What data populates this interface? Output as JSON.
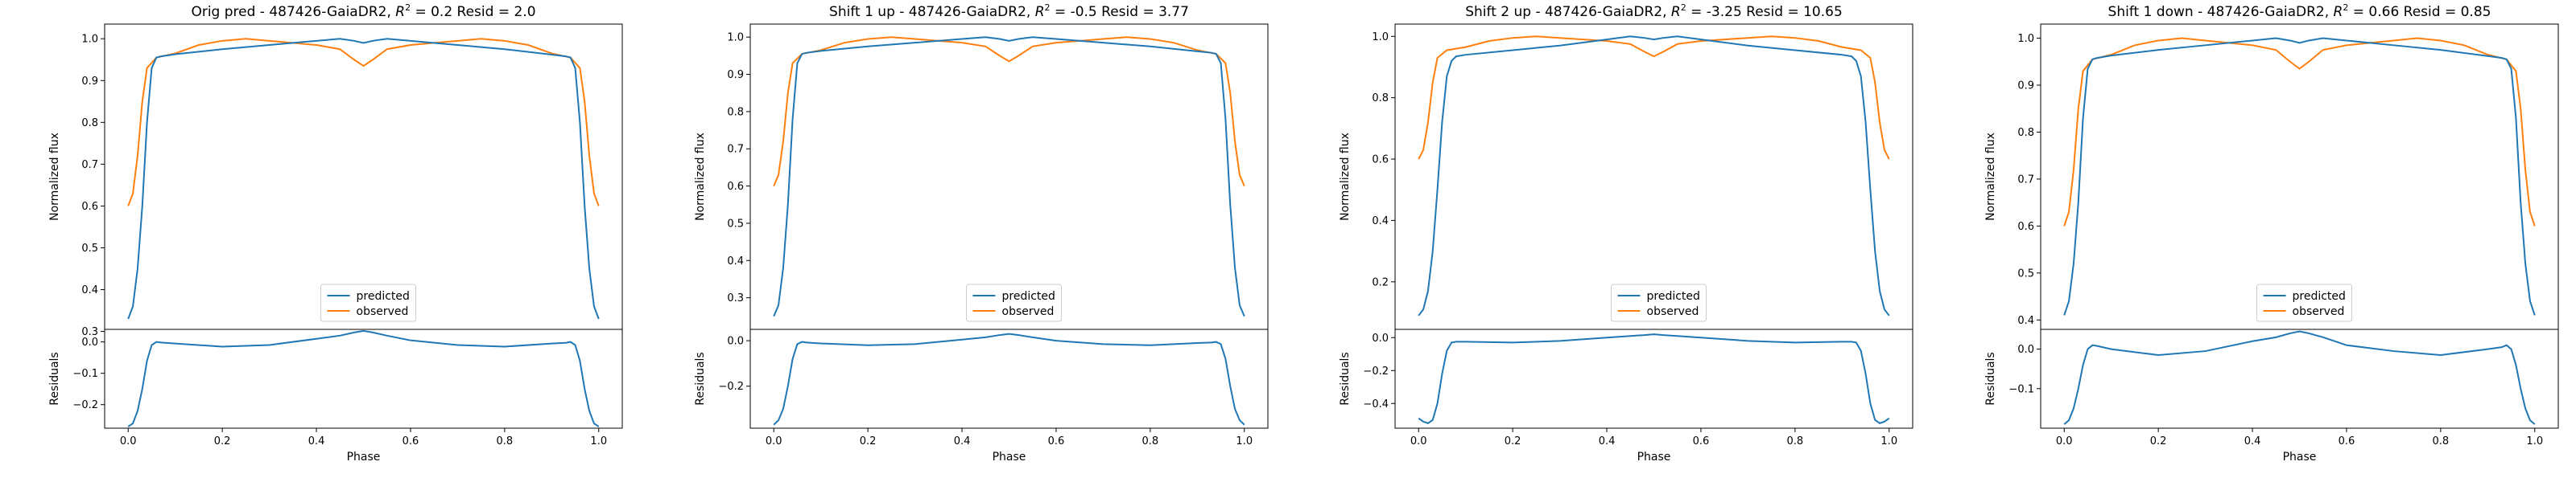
{
  "colors": {
    "predicted": "#1f77b4",
    "observed": "#ff7f0e"
  },
  "chart_data": [
    {
      "type": "line",
      "title_prefix": "Orig pred - 487426-GaiaDR2, ",
      "r2_label": "R",
      "r2_sup": "2",
      "title_mid": " = 0.2 Resid = 2.0",
      "xlabel": "Phase",
      "ylabel_top": "Normalized flux",
      "ylabel_bottom": "Residuals",
      "legend": [
        "predicted",
        "observed"
      ],
      "legend_position": "lower-center",
      "grid": false,
      "top_ylim": [
        0.305,
        1.035
      ],
      "top_yticks": [
        0.3,
        0.4,
        0.5,
        0.6,
        0.7,
        0.8,
        0.9,
        1.0
      ],
      "top_yticklabels": [
        "0.3",
        "0.4",
        "0.5",
        "0.6",
        "0.7",
        "0.8",
        "0.9",
        "1.0"
      ],
      "bottom_ylim": [
        -0.275,
        0.04
      ],
      "bottom_yticks": [
        -0.2,
        -0.1,
        0.0
      ],
      "bottom_yticklabels": [
        "−0.2",
        "−0.1",
        "0.0"
      ],
      "xlim": [
        -0.05,
        1.05
      ],
      "xticks": [
        0.0,
        0.2,
        0.4,
        0.6,
        0.8,
        1.0
      ],
      "xticklabels": [
        "0.0",
        "0.2",
        "0.4",
        "0.6",
        "0.8",
        "1.0"
      ],
      "series": [
        {
          "name": "predicted",
          "x": [
            0.0,
            0.01,
            0.02,
            0.03,
            0.04,
            0.05,
            0.06,
            0.07,
            0.1,
            0.2,
            0.3,
            0.4,
            0.45,
            0.48,
            0.5,
            0.52,
            0.55,
            0.6,
            0.7,
            0.8,
            0.9,
            0.93,
            0.94,
            0.95,
            0.96,
            0.97,
            0.98,
            0.99,
            1.0
          ],
          "y": [
            0.33,
            0.36,
            0.45,
            0.6,
            0.8,
            0.93,
            0.955,
            0.958,
            0.963,
            0.975,
            0.985,
            0.995,
            1.0,
            0.995,
            0.99,
            0.995,
            1.0,
            0.995,
            0.985,
            0.975,
            0.962,
            0.958,
            0.955,
            0.93,
            0.8,
            0.6,
            0.45,
            0.36,
            0.33
          ]
        },
        {
          "name": "observed",
          "x": [
            0.0,
            0.01,
            0.02,
            0.03,
            0.04,
            0.06,
            0.1,
            0.15,
            0.2,
            0.25,
            0.3,
            0.35,
            0.4,
            0.45,
            0.48,
            0.5,
            0.52,
            0.55,
            0.6,
            0.65,
            0.7,
            0.75,
            0.8,
            0.85,
            0.9,
            0.94,
            0.96,
            0.97,
            0.98,
            0.99,
            1.0
          ],
          "y": [
            0.6,
            0.63,
            0.72,
            0.85,
            0.93,
            0.955,
            0.965,
            0.985,
            0.995,
            1.0,
            0.995,
            0.99,
            0.985,
            0.975,
            0.95,
            0.935,
            0.95,
            0.975,
            0.985,
            0.99,
            0.995,
            1.0,
            0.995,
            0.985,
            0.965,
            0.955,
            0.93,
            0.85,
            0.72,
            0.63,
            0.6
          ]
        },
        {
          "name": "residuals",
          "x": [
            0.0,
            0.01,
            0.02,
            0.03,
            0.04,
            0.05,
            0.06,
            0.07,
            0.1,
            0.2,
            0.3,
            0.4,
            0.45,
            0.48,
            0.5,
            0.52,
            0.55,
            0.6,
            0.7,
            0.8,
            0.9,
            0.93,
            0.94,
            0.95,
            0.96,
            0.97,
            0.98,
            0.99,
            1.0
          ],
          "y": [
            -0.27,
            -0.26,
            -0.22,
            -0.15,
            -0.06,
            -0.01,
            0.0,
            -0.002,
            -0.005,
            -0.015,
            -0.01,
            0.01,
            0.02,
            0.03,
            0.035,
            0.03,
            0.02,
            0.005,
            -0.01,
            -0.015,
            -0.005,
            -0.003,
            0.0,
            -0.01,
            -0.06,
            -0.15,
            -0.22,
            -0.26,
            -0.27
          ]
        }
      ]
    },
    {
      "type": "line",
      "title_prefix": "Shift 1 up - 487426-GaiaDR2, ",
      "r2_label": "R",
      "r2_sup": "2",
      "title_mid": " = -0.5 Resid = 3.77",
      "xlabel": "Phase",
      "ylabel_top": "Normalized flux",
      "ylabel_bottom": "Residuals",
      "legend": [
        "predicted",
        "observed"
      ],
      "legend_position": "lower-center",
      "grid": false,
      "top_ylim": [
        0.215,
        1.035
      ],
      "top_yticks": [
        0.3,
        0.4,
        0.5,
        0.6,
        0.7,
        0.8,
        0.9,
        1.0
      ],
      "top_yticklabels": [
        "0.3",
        "0.4",
        "0.5",
        "0.6",
        "0.7",
        "0.8",
        "0.9",
        "1.0"
      ],
      "bottom_ylim": [
        -0.385,
        0.05
      ],
      "bottom_yticks": [
        -0.2,
        0.0
      ],
      "bottom_yticklabels": [
        "−0.2",
        "0.0"
      ],
      "xlim": [
        -0.05,
        1.05
      ],
      "xticks": [
        0.0,
        0.2,
        0.4,
        0.6,
        0.8,
        1.0
      ],
      "xticklabels": [
        "0.0",
        "0.2",
        "0.4",
        "0.6",
        "0.8",
        "1.0"
      ],
      "series": [
        {
          "name": "predicted",
          "x": [
            0.0,
            0.01,
            0.02,
            0.03,
            0.04,
            0.05,
            0.06,
            0.07,
            0.1,
            0.2,
            0.3,
            0.4,
            0.45,
            0.48,
            0.5,
            0.52,
            0.55,
            0.6,
            0.7,
            0.8,
            0.9,
            0.93,
            0.94,
            0.95,
            0.96,
            0.97,
            0.98,
            0.99,
            1.0
          ],
          "y": [
            0.25,
            0.28,
            0.38,
            0.55,
            0.78,
            0.93,
            0.955,
            0.958,
            0.963,
            0.975,
            0.985,
            0.995,
            1.0,
            0.995,
            0.99,
            0.995,
            1.0,
            0.995,
            0.985,
            0.975,
            0.962,
            0.958,
            0.955,
            0.93,
            0.78,
            0.55,
            0.38,
            0.28,
            0.25
          ]
        },
        {
          "name": "observed",
          "x": [
            0.0,
            0.01,
            0.02,
            0.03,
            0.04,
            0.06,
            0.1,
            0.15,
            0.2,
            0.25,
            0.3,
            0.35,
            0.4,
            0.45,
            0.48,
            0.5,
            0.52,
            0.55,
            0.6,
            0.65,
            0.7,
            0.75,
            0.8,
            0.85,
            0.9,
            0.94,
            0.96,
            0.97,
            0.98,
            0.99,
            1.0
          ],
          "y": [
            0.6,
            0.63,
            0.72,
            0.85,
            0.93,
            0.955,
            0.965,
            0.985,
            0.995,
            1.0,
            0.995,
            0.99,
            0.985,
            0.975,
            0.95,
            0.935,
            0.95,
            0.975,
            0.985,
            0.99,
            0.995,
            1.0,
            0.995,
            0.985,
            0.965,
            0.955,
            0.93,
            0.85,
            0.72,
            0.63,
            0.6
          ]
        },
        {
          "name": "residuals",
          "x": [
            0.0,
            0.01,
            0.02,
            0.03,
            0.04,
            0.05,
            0.06,
            0.07,
            0.1,
            0.2,
            0.3,
            0.4,
            0.45,
            0.48,
            0.5,
            0.52,
            0.55,
            0.6,
            0.7,
            0.8,
            0.9,
            0.93,
            0.94,
            0.95,
            0.96,
            0.97,
            0.98,
            0.99,
            1.0
          ],
          "y": [
            -0.37,
            -0.35,
            -0.3,
            -0.2,
            -0.08,
            -0.015,
            -0.005,
            -0.008,
            -0.012,
            -0.02,
            -0.015,
            0.005,
            0.015,
            0.025,
            0.03,
            0.025,
            0.015,
            0.0,
            -0.015,
            -0.02,
            -0.01,
            -0.008,
            -0.005,
            -0.015,
            -0.08,
            -0.2,
            -0.3,
            -0.35,
            -0.37
          ]
        }
      ]
    },
    {
      "type": "line",
      "title_prefix": "Shift 2 up - 487426-GaiaDR2, ",
      "r2_label": "R",
      "r2_sup": "2",
      "title_mid": " = -3.25 Resid = 10.65",
      "xlabel": "Phase",
      "ylabel_top": "Normalized flux",
      "ylabel_bottom": "Residuals",
      "legend": [
        "predicted",
        "observed"
      ],
      "legend_position": "lower-center",
      "grid": false,
      "top_ylim": [
        0.045,
        1.04
      ],
      "top_yticks": [
        0.2,
        0.4,
        0.6,
        0.8,
        1.0
      ],
      "top_yticklabels": [
        "0.2",
        "0.4",
        "0.6",
        "0.8",
        "1.0"
      ],
      "bottom_ylim": [
        -0.55,
        0.05
      ],
      "bottom_yticks": [
        -0.4,
        -0.2,
        0.0
      ],
      "bottom_yticklabels": [
        "−0.4",
        "−0.2",
        "0.0"
      ],
      "xlim": [
        -0.05,
        1.05
      ],
      "xticks": [
        0.0,
        0.2,
        0.4,
        0.6,
        0.8,
        1.0
      ],
      "xticklabels": [
        "0.0",
        "0.2",
        "0.4",
        "0.6",
        "0.8",
        "1.0"
      ],
      "series": [
        {
          "name": "predicted",
          "x": [
            0.0,
            0.01,
            0.02,
            0.03,
            0.04,
            0.05,
            0.06,
            0.07,
            0.08,
            0.1,
            0.2,
            0.3,
            0.4,
            0.45,
            0.48,
            0.5,
            0.52,
            0.55,
            0.6,
            0.7,
            0.8,
            0.9,
            0.92,
            0.93,
            0.94,
            0.95,
            0.96,
            0.97,
            0.98,
            0.99,
            1.0
          ],
          "y": [
            0.09,
            0.11,
            0.17,
            0.3,
            0.5,
            0.72,
            0.87,
            0.92,
            0.935,
            0.94,
            0.955,
            0.97,
            0.99,
            1.0,
            0.995,
            0.99,
            0.995,
            1.0,
            0.99,
            0.97,
            0.955,
            0.94,
            0.935,
            0.92,
            0.87,
            0.72,
            0.5,
            0.3,
            0.17,
            0.11,
            0.09
          ]
        },
        {
          "name": "observed",
          "x": [
            0.0,
            0.01,
            0.02,
            0.03,
            0.04,
            0.06,
            0.1,
            0.15,
            0.2,
            0.25,
            0.3,
            0.35,
            0.4,
            0.45,
            0.48,
            0.5,
            0.52,
            0.55,
            0.6,
            0.65,
            0.7,
            0.75,
            0.8,
            0.85,
            0.9,
            0.94,
            0.96,
            0.97,
            0.98,
            0.99,
            1.0
          ],
          "y": [
            0.6,
            0.63,
            0.72,
            0.85,
            0.93,
            0.955,
            0.965,
            0.985,
            0.995,
            1.0,
            0.995,
            0.99,
            0.985,
            0.975,
            0.95,
            0.935,
            0.95,
            0.975,
            0.985,
            0.99,
            0.995,
            1.0,
            0.995,
            0.985,
            0.965,
            0.955,
            0.93,
            0.85,
            0.72,
            0.63,
            0.6
          ]
        },
        {
          "name": "residuals",
          "x": [
            0.0,
            0.01,
            0.02,
            0.03,
            0.04,
            0.05,
            0.06,
            0.07,
            0.08,
            0.1,
            0.2,
            0.3,
            0.4,
            0.45,
            0.48,
            0.5,
            0.52,
            0.55,
            0.6,
            0.7,
            0.8,
            0.9,
            0.92,
            0.93,
            0.94,
            0.95,
            0.96,
            0.97,
            0.98,
            0.99,
            1.0
          ],
          "y": [
            -0.49,
            -0.51,
            -0.52,
            -0.5,
            -0.4,
            -0.22,
            -0.08,
            -0.03,
            -0.025,
            -0.025,
            -0.03,
            -0.02,
            0.0,
            0.01,
            0.015,
            0.02,
            0.015,
            0.01,
            0.0,
            -0.02,
            -0.03,
            -0.025,
            -0.025,
            -0.03,
            -0.08,
            -0.22,
            -0.4,
            -0.5,
            -0.52,
            -0.51,
            -0.49
          ]
        }
      ]
    },
    {
      "type": "line",
      "title_prefix": "Shift 1 down - 487426-GaiaDR2, ",
      "r2_label": "R",
      "r2_sup": "2",
      "title_mid": " = 0.66 Resid = 0.85",
      "xlabel": "Phase",
      "ylabel_top": "Normalized flux",
      "ylabel_bottom": "Residuals",
      "legend": [
        "predicted",
        "observed"
      ],
      "legend_position": "lower-center",
      "grid": false,
      "top_ylim": [
        0.38,
        1.03
      ],
      "top_yticks": [
        0.4,
        0.5,
        0.6,
        0.7,
        0.8,
        0.9,
        1.0
      ],
      "top_yticklabels": [
        "0.4",
        "0.5",
        "0.6",
        "0.7",
        "0.8",
        "0.9",
        "1.0"
      ],
      "bottom_ylim": [
        -0.2,
        0.05
      ],
      "bottom_yticks": [
        -0.1,
        0.0
      ],
      "bottom_yticklabels": [
        "−0.1",
        "0.0"
      ],
      "xlim": [
        -0.05,
        1.05
      ],
      "xticks": [
        0.0,
        0.2,
        0.4,
        0.6,
        0.8,
        1.0
      ],
      "xticklabels": [
        "0.0",
        "0.2",
        "0.4",
        "0.6",
        "0.8",
        "1.0"
      ],
      "series": [
        {
          "name": "predicted",
          "x": [
            0.0,
            0.01,
            0.02,
            0.03,
            0.04,
            0.05,
            0.06,
            0.07,
            0.1,
            0.2,
            0.3,
            0.4,
            0.45,
            0.48,
            0.5,
            0.52,
            0.55,
            0.6,
            0.7,
            0.8,
            0.9,
            0.93,
            0.94,
            0.95,
            0.96,
            0.97,
            0.98,
            0.99,
            1.0
          ],
          "y": [
            0.41,
            0.44,
            0.52,
            0.65,
            0.83,
            0.935,
            0.955,
            0.958,
            0.963,
            0.975,
            0.985,
            0.995,
            1.0,
            0.995,
            0.99,
            0.995,
            1.0,
            0.995,
            0.985,
            0.975,
            0.962,
            0.958,
            0.955,
            0.935,
            0.83,
            0.65,
            0.52,
            0.44,
            0.41
          ]
        },
        {
          "name": "observed",
          "x": [
            0.0,
            0.01,
            0.02,
            0.03,
            0.04,
            0.06,
            0.1,
            0.15,
            0.2,
            0.25,
            0.3,
            0.35,
            0.4,
            0.45,
            0.48,
            0.5,
            0.52,
            0.55,
            0.6,
            0.65,
            0.7,
            0.75,
            0.8,
            0.85,
            0.9,
            0.94,
            0.96,
            0.97,
            0.98,
            0.99,
            1.0
          ],
          "y": [
            0.6,
            0.63,
            0.72,
            0.85,
            0.93,
            0.955,
            0.965,
            0.985,
            0.995,
            1.0,
            0.995,
            0.99,
            0.985,
            0.975,
            0.95,
            0.935,
            0.95,
            0.975,
            0.985,
            0.99,
            0.995,
            1.0,
            0.995,
            0.985,
            0.965,
            0.955,
            0.93,
            0.85,
            0.72,
            0.63,
            0.6
          ]
        },
        {
          "name": "residuals",
          "x": [
            0.0,
            0.01,
            0.02,
            0.03,
            0.04,
            0.05,
            0.06,
            0.07,
            0.1,
            0.2,
            0.3,
            0.4,
            0.45,
            0.48,
            0.5,
            0.52,
            0.55,
            0.6,
            0.7,
            0.8,
            0.9,
            0.93,
            0.94,
            0.95,
            0.96,
            0.97,
            0.98,
            0.99,
            1.0
          ],
          "y": [
            -0.19,
            -0.18,
            -0.15,
            -0.1,
            -0.04,
            0.0,
            0.01,
            0.008,
            0.0,
            -0.015,
            -0.005,
            0.02,
            0.03,
            0.04,
            0.045,
            0.04,
            0.03,
            0.01,
            -0.005,
            -0.015,
            0.0,
            0.005,
            0.01,
            0.0,
            -0.04,
            -0.1,
            -0.15,
            -0.18,
            -0.19
          ]
        }
      ]
    }
  ]
}
